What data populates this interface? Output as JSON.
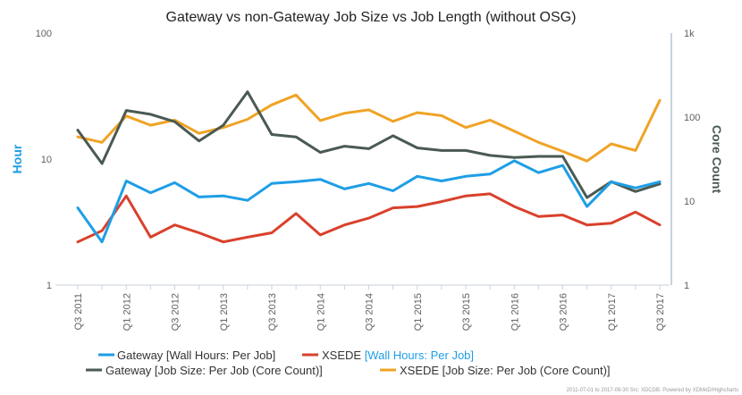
{
  "chart_data": {
    "type": "line",
    "title": "Gateway vs non-Gateway Job Size vs Job Length (without OSG)",
    "ylabel_left": "Hour",
    "ylabel_right": "Core Count",
    "y_left": {
      "scale": "log",
      "range": [
        1,
        100
      ],
      "ticks": [
        "1",
        "10",
        "100"
      ]
    },
    "y_right": {
      "scale": "log",
      "range": [
        1,
        1000
      ],
      "ticks": [
        "1",
        "10",
        "100",
        "1k"
      ]
    },
    "grid": false,
    "legend_position": "bottom",
    "x": [
      "Q3 2011",
      "Q4 2011",
      "Q1 2012",
      "Q2 2012",
      "Q3 2012",
      "Q4 2012",
      "Q1 2013",
      "Q2 2013",
      "Q3 2013",
      "Q4 2013",
      "Q1 2014",
      "Q2 2014",
      "Q3 2014",
      "Q4 2014",
      "Q1 2015",
      "Q2 2015",
      "Q3 2015",
      "Q4 2015",
      "Q1 2016",
      "Q2 2016",
      "Q3 2016",
      "Q4 2016",
      "Q1 2017",
      "Q2 2017",
      "Q3 2017"
    ],
    "x_tick_labels": [
      "Q3 2011",
      "Q1 2012",
      "Q3 2012",
      "Q1 2013",
      "Q3 2013",
      "Q1 2014",
      "Q3 2014",
      "Q1 2015",
      "Q3 2015",
      "Q1 2016",
      "Q3 2016",
      "Q1 2017",
      "Q3 2017"
    ],
    "series": [
      {
        "name": "Gateway [Wall Hours: Per Job]",
        "axis": "left",
        "color": "#1e9ee6",
        "values": [
          4.1,
          2.2,
          6.7,
          5.4,
          6.5,
          5.0,
          5.1,
          4.7,
          6.4,
          6.6,
          6.9,
          5.8,
          6.4,
          5.6,
          7.3,
          6.7,
          7.3,
          7.6,
          9.7,
          7.8,
          8.9,
          4.2,
          6.6,
          5.9,
          6.6
        ]
      },
      {
        "name": "XSEDE [Wall Hours: Per Job]",
        "axis": "left",
        "color": "#d9412b",
        "values": [
          2.2,
          2.7,
          5.1,
          2.4,
          3.0,
          2.6,
          2.2,
          2.4,
          2.6,
          3.7,
          2.5,
          3.0,
          3.4,
          4.1,
          4.2,
          4.6,
          5.1,
          5.3,
          4.2,
          3.5,
          3.6,
          3.0,
          3.1,
          3.8,
          3.0
        ]
      },
      {
        "name": "Gateway [Job Size: Per Job (Core Count)]",
        "axis": "right",
        "color": "#4a5a52",
        "values": [
          70,
          28,
          120,
          108,
          88,
          52,
          80,
          200,
          62,
          58,
          38,
          45,
          42,
          60,
          43,
          40,
          40,
          35,
          33,
          34,
          34,
          11,
          17,
          13,
          16
        ]
      },
      {
        "name": "XSEDE [Job Size: Per Job (Core Count)]",
        "axis": "right",
        "color": "#f0a326",
        "values": [
          58,
          50,
          103,
          80,
          92,
          64,
          75,
          94,
          140,
          183,
          91,
          111,
          122,
          89,
          113,
          104,
          75,
          92,
          68,
          50,
          39,
          30,
          48,
          40,
          158
        ]
      }
    ],
    "credits": "2011-07-01 to 2017-09-30 Src: XDCDB. Powered by XDMoD/Highcharts"
  }
}
